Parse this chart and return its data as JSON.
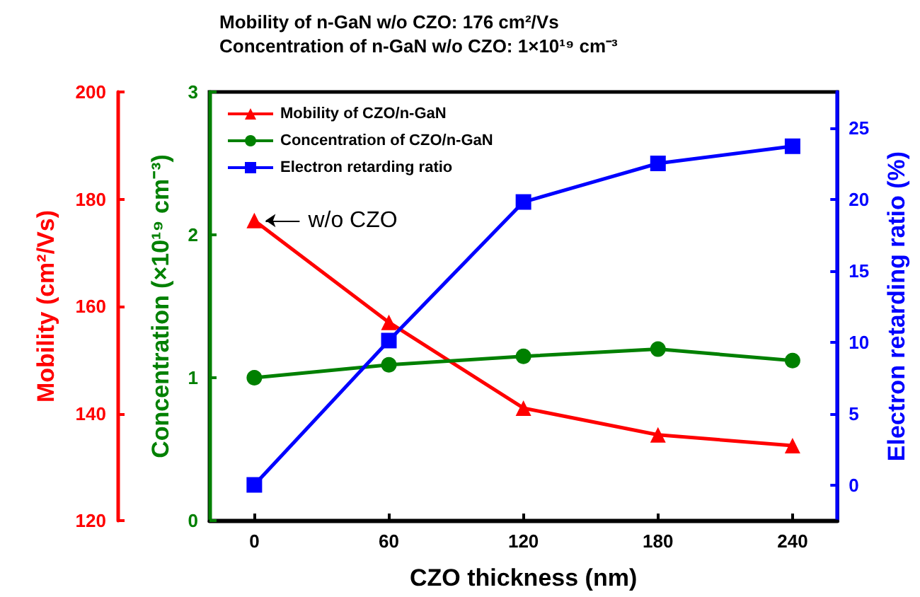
{
  "chart_data": {
    "type": "line",
    "title": "Mobility of n-GaN w/o CZO: 176 cm²/Vs",
    "subtitle": "Concentration of n-GaN w/o CZO: 1×10¹⁹ cm⁻³",
    "xlabel": "CZO thickness (nm)",
    "ylabel": "Mobility (cm²/Vs)",
    "y2label": "Concentration (×10¹⁹ cm⁻³)",
    "y3label": "Electron retarding ratio (%)",
    "x": [
      0,
      60,
      120,
      180,
      240
    ],
    "xlim": [
      -20,
      260
    ],
    "xticks": [
      0,
      60,
      120,
      180,
      240
    ],
    "ylim": [
      120,
      200
    ],
    "yticks": [
      120,
      140,
      160,
      180,
      200
    ],
    "y2lim": [
      0,
      3
    ],
    "y2ticks": [
      0,
      1,
      2,
      3
    ],
    "y3lim": [
      -2.5,
      27.5
    ],
    "y3ticks": [
      0,
      5,
      10,
      15,
      20,
      25
    ],
    "series": [
      {
        "name": "Mobility of CZO/n-GaN",
        "color": "#ff0000",
        "marker": "triangle",
        "values": [
          176,
          157,
          141,
          136,
          134
        ]
      },
      {
        "name": "Concentration of CZO/n-GaN",
        "color": "#008000",
        "marker": "circle",
        "axis": "y2",
        "values": [
          1.0,
          1.09,
          1.15,
          1.2,
          1.12
        ]
      },
      {
        "name": "Electron retarding ratio",
        "color": "#0000ff",
        "marker": "square",
        "axis": "y3",
        "values": [
          0,
          10.1,
          19.8,
          22.5,
          23.7
        ]
      }
    ],
    "annotations": [
      {
        "text": "w/o CZO",
        "x": 0,
        "y": 176
      }
    ],
    "legend": "top left",
    "grid": false,
    "line_style": "solid"
  }
}
